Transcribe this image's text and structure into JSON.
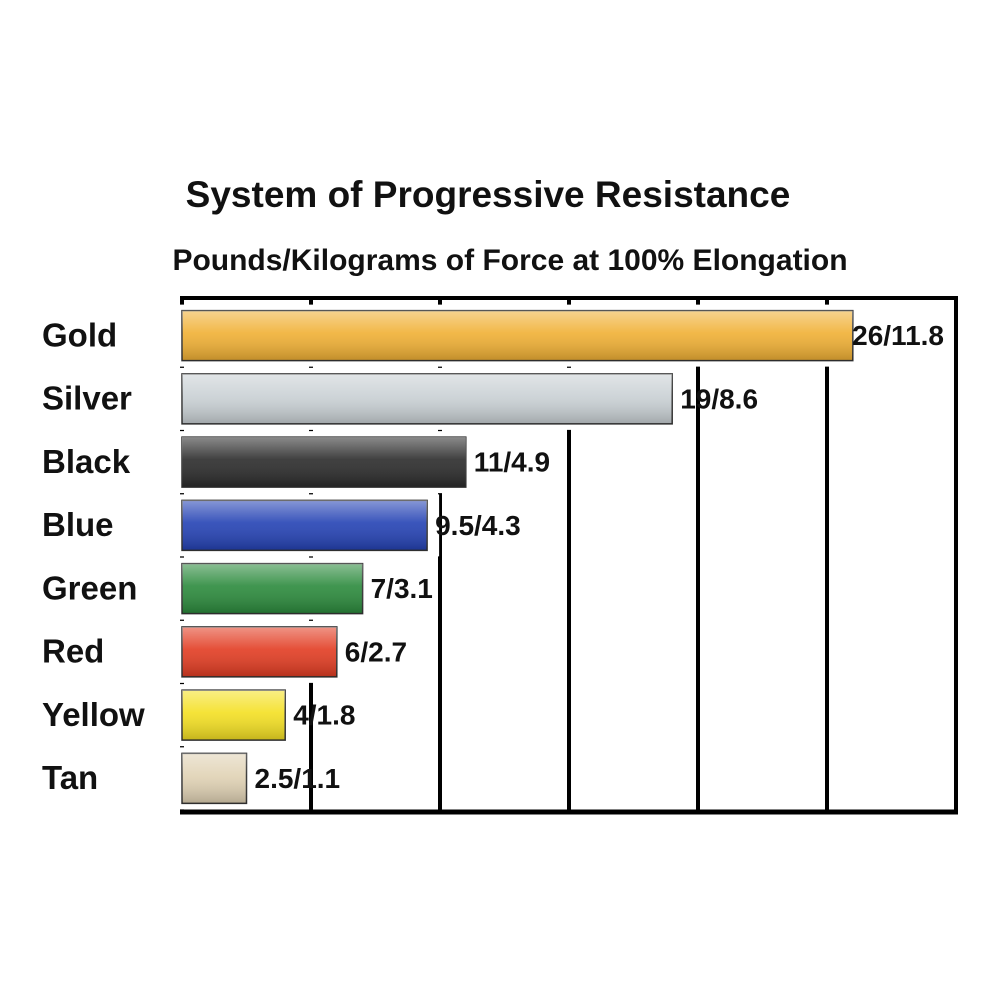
{
  "chart_data": {
    "type": "hbar",
    "title": "System of Progressive Resistance",
    "subtitle": "Pounds/Kilograms of Force at 100% Elongation",
    "categories": [
      "Gold",
      "Silver",
      "Black",
      "Blue",
      "Green",
      "Red",
      "Yellow",
      "Tan"
    ],
    "values": [
      26,
      19,
      11,
      9.5,
      7,
      6,
      4,
      2.5
    ],
    "value_labels": [
      "26/11.8",
      "19/8.6",
      "11/4.9",
      "9.5/4.3",
      "7/3.1",
      "6/2.7",
      "4/1.8",
      "2.5/1.1"
    ],
    "colors": [
      "#f0b034",
      "#c9d0d4",
      "#2b2b2b",
      "#2442b4",
      "#2b8a3c",
      "#e23c22",
      "#f4e022",
      "#e0d2b4"
    ],
    "xlim": [
      0,
      30
    ],
    "xticks": [
      0,
      5,
      10,
      15,
      20,
      25,
      30
    ],
    "grid": true
  }
}
